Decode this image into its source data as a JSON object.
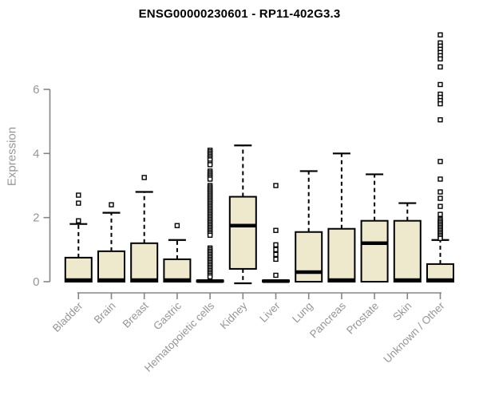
{
  "chart_data": {
    "type": "boxplot",
    "title": "ENSG00000230601 - RP11-402G3.3",
    "ylabel": "Expression",
    "xlabel": "",
    "ylim": [
      -0.2,
      7.9
    ],
    "yticks": [
      0,
      2,
      4,
      6
    ],
    "grid": false,
    "legend": "none",
    "colors": {
      "box_fill": "#EEE8CD",
      "box_stroke": "#000000",
      "median": "#000000",
      "axis": "#858585",
      "tick_label": "#969696",
      "title": "#000000",
      "outlier_fill": "#ffffff"
    },
    "categories": [
      "Bladder",
      "Brain",
      "Breast",
      "Gastric",
      "Hematopoietic cells",
      "Kidney",
      "Liver",
      "Lung",
      "Pancreas",
      "Prostate",
      "Skin",
      "Unknown / Other"
    ],
    "series": [
      {
        "name": "Bladder",
        "q1": 0,
        "median": 0.05,
        "q3": 0.75,
        "whisker_low": 0,
        "whisker_high": 1.8,
        "outliers": [
          1.9,
          2.45,
          2.7
        ]
      },
      {
        "name": "Brain",
        "q1": 0,
        "median": 0.05,
        "q3": 0.95,
        "whisker_low": 0,
        "whisker_high": 2.15,
        "outliers": [
          2.4
        ]
      },
      {
        "name": "Breast",
        "q1": 0,
        "median": 0.05,
        "q3": 1.2,
        "whisker_low": 0,
        "whisker_high": 2.8,
        "outliers": [
          3.25
        ]
      },
      {
        "name": "Gastric",
        "q1": 0,
        "median": 0.05,
        "q3": 0.7,
        "whisker_low": 0,
        "whisker_high": 1.3,
        "outliers": [
          1.75
        ]
      },
      {
        "name": "Hematopoietic cells",
        "q1": 0,
        "median": 0.02,
        "q3": 0.04,
        "whisker_low": 0,
        "whisker_high": 0.04,
        "outliers": [
          4.1,
          4.05,
          4.0,
          3.95,
          3.9,
          3.85,
          3.8,
          3.7,
          3.65,
          3.45,
          3.4,
          3.35,
          3.3,
          3.25,
          3.2,
          3.0,
          2.95,
          2.9,
          2.85,
          2.8,
          2.75,
          2.7,
          2.65,
          2.6,
          2.55,
          2.5,
          2.45,
          2.4,
          2.35,
          2.3,
          2.25,
          2.2,
          2.15,
          2.1,
          2.05,
          2.0,
          1.95,
          1.9,
          1.85,
          1.8,
          1.75,
          1.7,
          1.65,
          1.6,
          1.55,
          1.5,
          1.45,
          1.05,
          1.0,
          0.95,
          0.9,
          0.85,
          0.8,
          0.75,
          0.7,
          0.65,
          0.6,
          0.55,
          0.5,
          0.45,
          0.4,
          0.35,
          0.3,
          0.25,
          0.2,
          0.15
        ]
      },
      {
        "name": "Kidney",
        "q1": 0.4,
        "median": 1.75,
        "q3": 2.65,
        "whisker_low": -0.05,
        "whisker_high": 4.25,
        "outliers": []
      },
      {
        "name": "Liver",
        "q1": 0,
        "median": 0.02,
        "q3": 0.04,
        "whisker_low": 0,
        "whisker_high": 0.04,
        "outliers": [
          0.2,
          0.7,
          0.85,
          1.0,
          1.15,
          1.6,
          3.0
        ]
      },
      {
        "name": "Lung",
        "q1": 0,
        "median": 0.3,
        "q3": 1.55,
        "whisker_low": 0,
        "whisker_high": 3.45,
        "outliers": []
      },
      {
        "name": "Pancreas",
        "q1": 0,
        "median": 0.05,
        "q3": 1.65,
        "whisker_low": 0,
        "whisker_high": 4.0,
        "outliers": []
      },
      {
        "name": "Prostate",
        "q1": 0,
        "median": 1.2,
        "q3": 1.9,
        "whisker_low": 0,
        "whisker_high": 3.35,
        "outliers": []
      },
      {
        "name": "Skin",
        "q1": 0,
        "median": 0.05,
        "q3": 1.9,
        "whisker_low": 0,
        "whisker_high": 2.45,
        "outliers": []
      },
      {
        "name": "Unknown / Other",
        "q1": 0,
        "median": 0.05,
        "q3": 0.55,
        "whisker_low": 0,
        "whisker_high": 1.3,
        "outliers": [
          7.7,
          7.45,
          7.35,
          7.25,
          7.15,
          7.05,
          6.95,
          6.7,
          6.15,
          5.85,
          5.75,
          5.65,
          5.55,
          5.05,
          3.75,
          3.2,
          2.8,
          2.6,
          2.35,
          2.1,
          1.95,
          1.9,
          1.85,
          1.8,
          1.75,
          1.7,
          1.65,
          1.6,
          1.55,
          1.5,
          1.45,
          1.4,
          1.35
        ]
      }
    ]
  }
}
